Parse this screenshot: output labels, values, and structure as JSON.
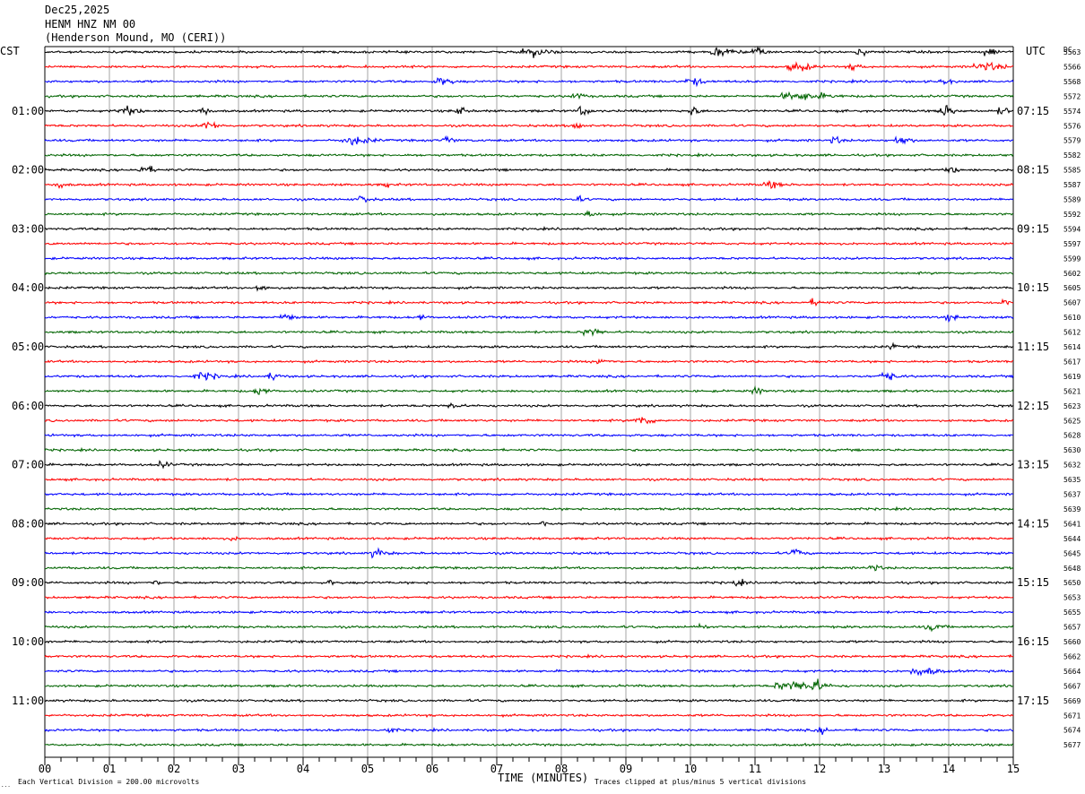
{
  "header": {
    "date": "Dec25,2025",
    "station": "HENM HNZ NM 00",
    "location": "(Henderson Mound, MO (CERI))"
  },
  "chart_data": {
    "type": "line",
    "title": "",
    "xlabel": "TIME (MINUTES)",
    "left_axis_label": "CST",
    "right_axis_label": "UTC",
    "dc_label": "DC",
    "xlim": [
      0,
      15
    ],
    "x_ticks": [
      "00",
      "01",
      "02",
      "03",
      "04",
      "05",
      "06",
      "07",
      "08",
      "09",
      "10",
      "11",
      "12",
      "13",
      "14",
      "15"
    ],
    "trace_colors": [
      "#000000",
      "#ff0000",
      "#0000ff",
      "#006400"
    ],
    "left_hour_labels": [
      {
        "trace": 4,
        "label": "01:00"
      },
      {
        "trace": 8,
        "label": "02:00"
      },
      {
        "trace": 12,
        "label": "03:00"
      },
      {
        "trace": 16,
        "label": "04:00"
      },
      {
        "trace": 20,
        "label": "05:00"
      },
      {
        "trace": 24,
        "label": "06:00"
      },
      {
        "trace": 28,
        "label": "07:00"
      },
      {
        "trace": 32,
        "label": "08:00"
      },
      {
        "trace": 36,
        "label": "09:00"
      },
      {
        "trace": 40,
        "label": "10:00"
      },
      {
        "trace": 44,
        "label": "11:00"
      }
    ],
    "right_hour_labels": [
      {
        "trace": 4,
        "label": "07:15"
      },
      {
        "trace": 8,
        "label": "08:15"
      },
      {
        "trace": 12,
        "label": "09:15"
      },
      {
        "trace": 16,
        "label": "10:15"
      },
      {
        "trace": 20,
        "label": "11:15"
      },
      {
        "trace": 24,
        "label": "12:15"
      },
      {
        "trace": 28,
        "label": "13:15"
      },
      {
        "trace": 32,
        "label": "14:15"
      },
      {
        "trace": 36,
        "label": "15:15"
      },
      {
        "trace": 40,
        "label": "16:15"
      },
      {
        "trace": 44,
        "label": "17:15"
      }
    ],
    "dc_offsets": [
      "5563",
      "5566",
      "5568",
      "5572",
      "5574",
      "5576",
      "5579",
      "5582",
      "5585",
      "5587",
      "5589",
      "5592",
      "5594",
      "5597",
      "5599",
      "5602",
      "5605",
      "5607",
      "5610",
      "5612",
      "5614",
      "5617",
      "5619",
      "5621",
      "5623",
      "5625",
      "5628",
      "5630",
      "5632",
      "5635",
      "5637",
      "5639",
      "5641",
      "5644",
      "5645",
      "5648",
      "5650",
      "5653",
      "5655",
      "5657",
      "5660",
      "5662",
      "5664",
      "5667",
      "5669",
      "5671",
      "5674",
      "5677"
    ],
    "events": [
      {
        "trace": 0,
        "minute": 7.5,
        "amp": 2.4,
        "width": 0.4
      },
      {
        "trace": 0,
        "minute": 10.4,
        "amp": 1.8,
        "width": 0.4
      },
      {
        "trace": 0,
        "minute": 11.0,
        "amp": 2.6,
        "width": 0.2
      },
      {
        "trace": 0,
        "minute": 12.6,
        "amp": 1.6,
        "width": 0.2
      },
      {
        "trace": 0,
        "minute": 14.6,
        "amp": 2.2,
        "width": 0.2
      },
      {
        "trace": 1,
        "minute": 11.6,
        "amp": 1.8,
        "width": 0.4
      },
      {
        "trace": 1,
        "minute": 12.5,
        "amp": 1.6,
        "width": 0.2
      },
      {
        "trace": 1,
        "minute": 14.5,
        "amp": 1.6,
        "width": 0.5
      },
      {
        "trace": 2,
        "minute": 6.1,
        "amp": 1.6,
        "width": 0.3
      },
      {
        "trace": 2,
        "minute": 10.0,
        "amp": 1.5,
        "width": 0.3
      },
      {
        "trace": 2,
        "minute": 13.9,
        "amp": 1.4,
        "width": 0.2
      },
      {
        "trace": 3,
        "minute": 8.2,
        "amp": 1.4,
        "width": 0.2
      },
      {
        "trace": 3,
        "minute": 11.6,
        "amp": 1.6,
        "width": 0.8
      },
      {
        "trace": 4,
        "minute": 1.2,
        "amp": 1.8,
        "width": 0.4
      },
      {
        "trace": 4,
        "minute": 2.4,
        "amp": 2.6,
        "width": 0.2
      },
      {
        "trace": 4,
        "minute": 6.4,
        "amp": 1.8,
        "width": 0.2
      },
      {
        "trace": 4,
        "minute": 8.3,
        "amp": 2.2,
        "width": 0.2
      },
      {
        "trace": 4,
        "minute": 10.0,
        "amp": 2.0,
        "width": 0.2
      },
      {
        "trace": 4,
        "minute": 13.9,
        "amp": 2.4,
        "width": 0.3
      },
      {
        "trace": 4,
        "minute": 14.8,
        "amp": 1.6,
        "width": 0.2
      },
      {
        "trace": 5,
        "minute": 2.5,
        "amp": 1.8,
        "width": 0.3
      },
      {
        "trace": 5,
        "minute": 8.2,
        "amp": 1.8,
        "width": 0.2
      },
      {
        "trace": 6,
        "minute": 4.7,
        "amp": 1.8,
        "width": 0.5
      },
      {
        "trace": 6,
        "minute": 6.2,
        "amp": 1.6,
        "width": 0.2
      },
      {
        "trace": 6,
        "minute": 12.2,
        "amp": 1.5,
        "width": 0.2
      },
      {
        "trace": 6,
        "minute": 13.2,
        "amp": 1.8,
        "width": 0.3
      },
      {
        "trace": 8,
        "minute": 1.5,
        "amp": 1.6,
        "width": 0.3
      },
      {
        "trace": 8,
        "minute": 14.0,
        "amp": 1.8,
        "width": 0.2
      },
      {
        "trace": 9,
        "minute": 0.2,
        "amp": 1.4,
        "width": 0.2
      },
      {
        "trace": 9,
        "minute": 5.3,
        "amp": 1.5,
        "width": 0.1
      },
      {
        "trace": 9,
        "minute": 11.2,
        "amp": 1.5,
        "width": 0.3
      },
      {
        "trace": 10,
        "minute": 4.9,
        "amp": 1.6,
        "width": 0.2
      },
      {
        "trace": 10,
        "minute": 8.2,
        "amp": 1.3,
        "width": 0.2
      },
      {
        "trace": 11,
        "minute": 8.4,
        "amp": 1.8,
        "width": 0.2
      },
      {
        "trace": 16,
        "minute": 3.3,
        "amp": 1.5,
        "width": 0.2
      },
      {
        "trace": 17,
        "minute": 11.9,
        "amp": 1.4,
        "width": 0.2
      },
      {
        "trace": 17,
        "minute": 14.8,
        "amp": 1.6,
        "width": 0.2
      },
      {
        "trace": 18,
        "minute": 3.7,
        "amp": 1.4,
        "width": 0.3
      },
      {
        "trace": 18,
        "minute": 5.8,
        "amp": 1.5,
        "width": 0.1
      },
      {
        "trace": 18,
        "minute": 14.0,
        "amp": 1.4,
        "width": 0.2
      },
      {
        "trace": 19,
        "minute": 8.4,
        "amp": 1.7,
        "width": 0.3
      },
      {
        "trace": 20,
        "minute": 13.1,
        "amp": 1.8,
        "width": 0.1
      },
      {
        "trace": 21,
        "minute": 8.6,
        "amp": 1.4,
        "width": 0.2
      },
      {
        "trace": 22,
        "minute": 2.4,
        "amp": 1.5,
        "width": 0.4
      },
      {
        "trace": 22,
        "minute": 3.5,
        "amp": 1.6,
        "width": 0.2
      },
      {
        "trace": 22,
        "minute": 13.0,
        "amp": 1.8,
        "width": 0.3
      },
      {
        "trace": 23,
        "minute": 3.3,
        "amp": 2.2,
        "width": 0.2
      },
      {
        "trace": 23,
        "minute": 11.0,
        "amp": 1.4,
        "width": 0.2
      },
      {
        "trace": 24,
        "minute": 6.3,
        "amp": 1.4,
        "width": 0.2
      },
      {
        "trace": 25,
        "minute": 9.2,
        "amp": 2.2,
        "width": 0.3
      },
      {
        "trace": 28,
        "minute": 1.8,
        "amp": 1.4,
        "width": 0.2
      },
      {
        "trace": 32,
        "minute": 7.7,
        "amp": 1.5,
        "width": 0.1
      },
      {
        "trace": 33,
        "minute": 2.9,
        "amp": 1.2,
        "width": 0.1
      },
      {
        "trace": 34,
        "minute": 5.1,
        "amp": 1.6,
        "width": 0.3
      },
      {
        "trace": 34,
        "minute": 11.6,
        "amp": 2.0,
        "width": 0.2
      },
      {
        "trace": 35,
        "minute": 12.8,
        "amp": 1.4,
        "width": 0.2
      },
      {
        "trace": 36,
        "minute": 1.7,
        "amp": 1.4,
        "width": 0.1
      },
      {
        "trace": 36,
        "minute": 4.4,
        "amp": 1.3,
        "width": 0.1
      },
      {
        "trace": 36,
        "minute": 10.7,
        "amp": 1.3,
        "width": 0.2
      },
      {
        "trace": 39,
        "minute": 10.1,
        "amp": 1.3,
        "width": 0.2
      },
      {
        "trace": 39,
        "minute": 13.7,
        "amp": 1.4,
        "width": 0.3
      },
      {
        "trace": 42,
        "minute": 13.5,
        "amp": 1.7,
        "width": 0.5
      },
      {
        "trace": 43,
        "minute": 11.5,
        "amp": 2.0,
        "width": 0.8
      },
      {
        "trace": 43,
        "minute": 11.9,
        "amp": 2.6,
        "width": 0.2
      },
      {
        "trace": 46,
        "minute": 5.3,
        "amp": 1.3,
        "width": 0.2
      },
      {
        "trace": 46,
        "minute": 12.0,
        "amp": 1.3,
        "width": 0.2
      }
    ],
    "footer_left": "Each Vertical Division =  200.00 microvolts",
    "footer_right": "Traces clipped at plus/minus 5 vertical divisions",
    "corner_mark": "..."
  }
}
